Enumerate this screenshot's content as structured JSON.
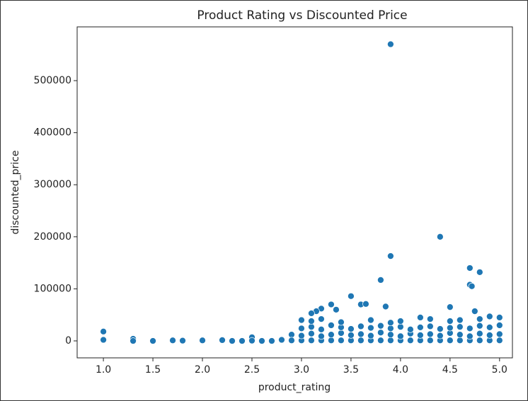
{
  "chart_data": {
    "type": "scatter",
    "title": "Product Rating vs Discounted Price",
    "x_label": "product_rating",
    "y_label": "discounted_price",
    "color": "#1f77b4",
    "xlim": [
      0.735,
      5.13
    ],
    "ylim": [
      -32600,
      603300
    ],
    "xticks": [
      {
        "value": 1,
        "label": "1.0"
      },
      {
        "value": 1.5,
        "label": "1.5"
      },
      {
        "value": 2,
        "label": "2.0"
      },
      {
        "value": 2.5,
        "label": "2.5"
      },
      {
        "value": 3,
        "label": "3.0"
      },
      {
        "value": 3.5,
        "label": "3.5"
      },
      {
        "value": 4,
        "label": "4.0"
      },
      {
        "value": 4.5,
        "label": "4.5"
      },
      {
        "value": 5,
        "label": "5.0"
      }
    ],
    "yticks": [
      0,
      100000,
      200000,
      300000,
      400000,
      500000
    ],
    "x": [
      3.9,
      4.4,
      3.9,
      3.8,
      4.7,
      4.8,
      4.7,
      4.72,
      3.5,
      4.5,
      3.3,
      3.6,
      3.65,
      3.35,
      3.2,
      3.15,
      3.1,
      3.85,
      4.75,
      1.0,
      1.0,
      1.3,
      1.3,
      1.5,
      1.7,
      1.8,
      2.0,
      2.2,
      2.3,
      2.4,
      2.5,
      2.5,
      2.6,
      2.7,
      2.8,
      2.9,
      2.9,
      3.0,
      3.1,
      3.2,
      3.3,
      3.4,
      3.5,
      3.6,
      3.7,
      3.8,
      3.9,
      4.0,
      4.1,
      4.2,
      4.3,
      4.4,
      4.5,
      4.6,
      4.7,
      4.8,
      4.9,
      5.0,
      3.0,
      3.1,
      3.2,
      3.3,
      3.4,
      3.5,
      3.6,
      3.7,
      3.8,
      3.9,
      4.0,
      4.1,
      4.2,
      4.3,
      4.4,
      4.5,
      4.6,
      4.7,
      4.8,
      4.9,
      5.0,
      3.0,
      3.1,
      3.2,
      3.3,
      3.4,
      3.5,
      3.6,
      3.7,
      3.8,
      3.9,
      4.0,
      4.1,
      4.2,
      4.3,
      4.4,
      4.5,
      4.6,
      4.7,
      4.8,
      4.9,
      5.0,
      3.0,
      3.1,
      3.2,
      3.4,
      3.7,
      3.9,
      4.0,
      4.2,
      4.3,
      4.5,
      4.6,
      4.8,
      4.9,
      5.0
    ],
    "y": [
      570000,
      200000,
      163000,
      117000,
      140000,
      132000,
      108000,
      105000,
      86000,
      65000,
      70000,
      70000,
      71000,
      60000,
      62000,
      57000,
      53000,
      66000,
      57000,
      18000,
      2000,
      4000,
      0,
      0,
      1000,
      500,
      1000,
      1500,
      0,
      0,
      7000,
      500,
      0,
      0,
      2000,
      12000,
      1000,
      1000,
      1000,
      1000,
      1000,
      1000,
      1000,
      1000,
      1000,
      1000,
      1000,
      1000,
      1000,
      1000,
      1000,
      1000,
      1000,
      1000,
      1000,
      1000,
      1000,
      1000,
      10000,
      14000,
      9000,
      12000,
      15000,
      11000,
      13000,
      10000,
      16000,
      12000,
      9000,
      14000,
      11000,
      13000,
      10000,
      15000,
      12000,
      9000,
      14000,
      11000,
      13000,
      24000,
      27000,
      22000,
      30000,
      26000,
      23000,
      28000,
      25000,
      29000,
      24000,
      27000,
      22000,
      26000,
      28000,
      23000,
      25000,
      27000,
      24000,
      29000,
      26000,
      30000,
      40000,
      38000,
      42000,
      36000,
      40000,
      35000,
      38000,
      45000,
      42000,
      38000,
      40000,
      42000,
      47000,
      45000
    ]
  }
}
